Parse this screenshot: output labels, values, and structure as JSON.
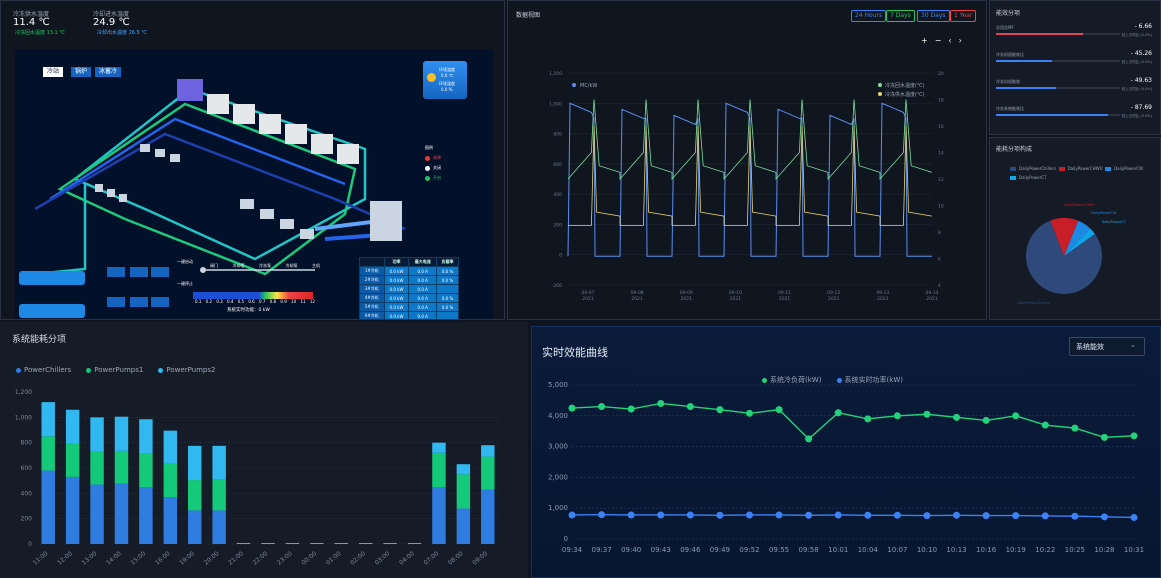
{
  "top_left": {
    "stat1": {
      "label": "冷冻供水温度",
      "value": "11.4 ℃",
      "sub": "冷冻回水温度 13.1 ℃"
    },
    "stat2": {
      "label": "冷却进水温度",
      "value": "24.9 ℃",
      "sub": "冷却出水温度 26.5 ℃"
    },
    "modes": [
      "冷站",
      "锅炉",
      "冰蓄冷"
    ],
    "env": {
      "temp_label": "环境温度",
      "temp_value": "0.0 ℃",
      "hum_label": "环境湿度",
      "hum_value": "0.0 %"
    },
    "legend_title": "图例",
    "legend": [
      {
        "label": "故障",
        "color": "#e83b3b"
      },
      {
        "label": "关闭",
        "color": "#ffffff"
      },
      {
        "label": "开启",
        "color": "#22c55e"
      }
    ],
    "process_labels": [
      "阀门",
      "冷却塔",
      "冷冻泵",
      "冷却泵",
      "主机"
    ],
    "labels_misc": [
      "一键启动",
      "一键停止"
    ],
    "scale": [
      "0.1",
      "0.2",
      "0.3",
      "0.4",
      "0.5",
      "0.6",
      "0.7",
      "0.8",
      "0.9",
      "10",
      "11",
      "12"
    ],
    "realtime_label": "系统实时功能：0 kW",
    "table": {
      "headers": [
        "",
        "功率",
        "最大电流",
        "负载率"
      ],
      "rows": [
        [
          "1#冷机",
          "0.0 kW",
          "0.0 A",
          "0.0 %"
        ],
        [
          "2#冷机",
          "0.0 kW",
          "0.0 A",
          "0.0 %"
        ],
        [
          "3#冷机",
          "0.0 kW",
          "0.0 A",
          ""
        ],
        [
          "4#冷机",
          "0.0 kW",
          "0.0 A",
          "0.0 %"
        ],
        [
          "5#冷机",
          "0.0 kW",
          "0.0 A",
          "0.0 %"
        ],
        [
          "6#冷机",
          "0.0 kW",
          "0.0 A",
          ""
        ]
      ]
    }
  },
  "data_view": {
    "title": "数据视图",
    "ranges": [
      {
        "label": "24 Hours",
        "color": "#3b82f6"
      },
      {
        "label": "7 Days",
        "color": "#22c55e"
      },
      {
        "label": "30 Days",
        "color": "#3b82f6"
      },
      {
        "label": "1 Year",
        "color": "#ef4444"
      }
    ],
    "controls": [
      "+",
      "−",
      "‹",
      "›"
    ],
    "series": [
      {
        "name": "MC/kW",
        "color": "#5b8def"
      },
      {
        "name": "冷冻回水温度(℃)",
        "color": "#7de0a0"
      },
      {
        "name": "冷冻供水温度(℃)",
        "color": "#e6d36a"
      }
    ],
    "y_left": [
      "1,200",
      "1,000",
      "800",
      "600",
      "400",
      "200",
      "0",
      "-200"
    ],
    "y_right": [
      "20",
      "18",
      "16",
      "14",
      "12",
      "10",
      "8",
      "6",
      "4"
    ],
    "x_ticks": [
      "09-07 2021",
      "09-08 2021",
      "09-09 2021",
      "09-10 2021",
      "09-11 2021",
      "09-12 2021",
      "09-13 2021",
      "09-14 2021"
    ]
  },
  "efficiency": {
    "title": "能效分项",
    "items": [
      {
        "label": "总用总MF",
        "value": "- 6.66",
        "sub": "较上日同比 (0.0%)",
        "color": "#e0435b",
        "pct": 0.7
      },
      {
        "label": "冷冻机组能效比",
        "value": "- 45.26",
        "sub": "较上日同比 (0.0%)",
        "color": "#3b82f6",
        "pct": 0.45
      },
      {
        "label": "冷冻机组能效",
        "value": "- 49.63",
        "sub": "较上日同比 (0.0%)",
        "color": "#3b82f6",
        "pct": 0.48
      },
      {
        "label": "冷冻系统能效比",
        "value": "- 87.69",
        "sub": "较上日同比 (0.0%)",
        "color": "#3b82f6",
        "pct": 0.9
      }
    ]
  },
  "pie": {
    "title": "能耗分项构成",
    "legend": [
      {
        "label": "DailyPowerChillers",
        "color": "#2f4a7a"
      },
      {
        "label": "DailyPowerCHWU",
        "color": "#c81e28"
      },
      {
        "label": "DailyPowerCW",
        "color": "#1e88e5"
      },
      {
        "label": "DailyPowerCT",
        "color": "#0ea5e9"
      }
    ],
    "chart_data": {
      "type": "pie",
      "labels": [
        "DailyPowerChillers",
        "DailyPowerCHWU",
        "DailyPowerCW",
        "DailyPowerCT"
      ],
      "values": [
        79,
        12,
        6,
        3
      ]
    }
  },
  "energy_bars": {
    "title": "系统能耗分项",
    "chart_data": {
      "type": "bar",
      "categories": [
        "11:00",
        "12:00",
        "13:00",
        "14:00",
        "15:00",
        "16:00",
        "19:00",
        "20:00",
        "21:00",
        "22:00",
        "23:00",
        "00:00",
        "01:00",
        "02:00",
        "03:00",
        "04:00",
        "07:00",
        "08:00",
        "09:00"
      ],
      "series": [
        {
          "name": "PowerChillers",
          "color": "#2f7de1",
          "values": [
            580,
            530,
            470,
            475,
            450,
            370,
            265,
            265,
            0,
            0,
            0,
            0,
            0,
            0,
            0,
            0,
            450,
            280,
            430
          ]
        },
        {
          "name": "PowerPumps1",
          "color": "#14c97a",
          "values": [
            270,
            260,
            260,
            260,
            265,
            265,
            240,
            245,
            0,
            0,
            0,
            0,
            0,
            0,
            0,
            0,
            270,
            270,
            260
          ]
        },
        {
          "name": "PowerPumps2",
          "color": "#31b8f0",
          "values": [
            270,
            270,
            270,
            270,
            270,
            260,
            270,
            265,
            8,
            8,
            8,
            8,
            8,
            8,
            8,
            8,
            80,
            80,
            90
          ]
        }
      ],
      "ylim": [
        0,
        1200
      ],
      "yticks": [
        "0",
        "200",
        "400",
        "600",
        "800",
        "1,000",
        "1,200"
      ]
    }
  },
  "efficiency_curve": {
    "title": "实时效能曲线",
    "select_value": "系统能效",
    "chart_data": {
      "type": "line",
      "x": [
        "09:34",
        "09:37",
        "09:40",
        "09:43",
        "09:46",
        "09:49",
        "09:52",
        "09:55",
        "09:58",
        "10:01",
        "10:04",
        "10:07",
        "10:10",
        "10:13",
        "10:16",
        "10:19",
        "10:22",
        "10:25",
        "10:28",
        "10:31"
      ],
      "series": [
        {
          "name": "系统冷负荷(kW)",
          "color": "#22d37a",
          "values": [
            4250,
            4300,
            4220,
            4400,
            4300,
            4200,
            4080,
            4200,
            3250,
            4100,
            3900,
            4000,
            4050,
            3950,
            3850,
            4000,
            3700,
            3600,
            3300,
            3350
          ]
        },
        {
          "name": "系统实时功率(kW)",
          "color": "#3b82f6",
          "values": [
            780,
            790,
            780,
            780,
            780,
            770,
            780,
            780,
            770,
            780,
            770,
            770,
            760,
            770,
            760,
            760,
            750,
            740,
            720,
            700
          ]
        }
      ],
      "ylim": [
        0,
        5000
      ],
      "yticks": [
        "0",
        "1,000",
        "2,000",
        "3,000",
        "4,000",
        "5,000"
      ]
    }
  }
}
